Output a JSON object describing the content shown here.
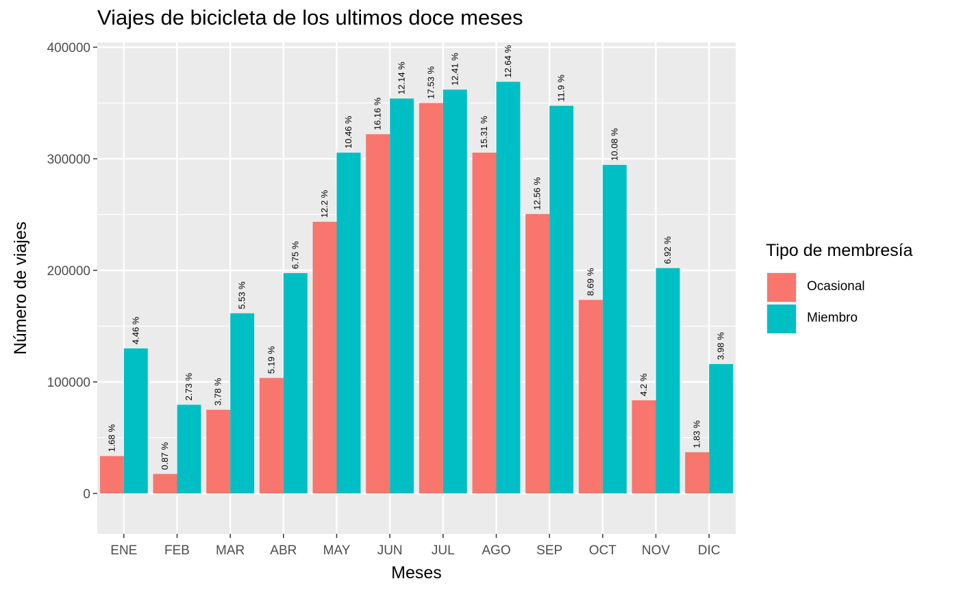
{
  "chart_data": {
    "type": "bar",
    "title": "Viajes de bicicleta de los ultimos doce meses",
    "xlabel": "Meses",
    "ylabel": "Número de viajes",
    "ylim": [
      -37000,
      402000
    ],
    "yticks": [
      0,
      100000,
      200000,
      300000,
      400000
    ],
    "ytick_labels": [
      "0",
      "100000",
      "200000",
      "300000",
      "400000"
    ],
    "categories": [
      "ENE",
      "FEB",
      "MAR",
      "ABR",
      "MAY",
      "JUN",
      "JUL",
      "AGO",
      "SEP",
      "OCT",
      "NOV",
      "DIC"
    ],
    "series": [
      {
        "name": "Ocasional",
        "color": "#F8766D",
        "values": [
          33500,
          17500,
          75000,
          103500,
          243500,
          322000,
          350000,
          305500,
          250500,
          173500,
          83500,
          37000
        ],
        "labels": [
          "1.68 %",
          "0.87 %",
          "3.78 %",
          "5.19 %",
          "12.2 %",
          "16.16 %",
          "17.53 %",
          "15.31 %",
          "12.56 %",
          "8.69 %",
          "4.2 %",
          "1.83 %"
        ]
      },
      {
        "name": "Miembro",
        "color": "#00BFC4",
        "values": [
          130000,
          79500,
          161500,
          197500,
          305500,
          354000,
          362000,
          369000,
          347500,
          294500,
          202000,
          116000
        ],
        "labels": [
          "4.46 %",
          "2.73 %",
          "5.53 %",
          "6.75 %",
          "10.46 %",
          "12.14 %",
          "12.41 %",
          "12.64 %",
          "11.9 %",
          "10.08 %",
          "6.92 %",
          "3.98 %"
        ]
      }
    ],
    "legend": {
      "title": "Tipo de membresía",
      "position": "right"
    },
    "grid": true,
    "panel_background": "#EBEBEB"
  }
}
